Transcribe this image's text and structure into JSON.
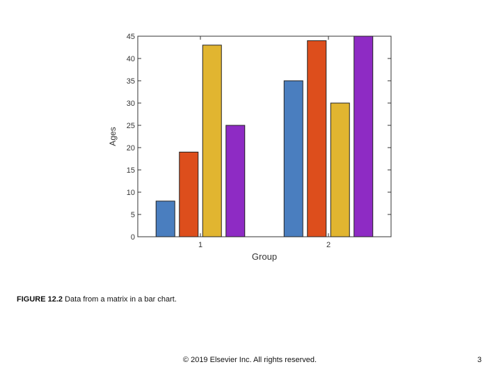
{
  "chart_data": {
    "type": "bar",
    "categories": [
      "1",
      "2"
    ],
    "series": [
      {
        "values": [
          8,
          35
        ],
        "color": "#4A7EBF"
      },
      {
        "values": [
          19,
          44
        ],
        "color": "#DD4E1C"
      },
      {
        "values": [
          43,
          30
        ],
        "color": "#E1B530"
      },
      {
        "values": [
          25,
          45
        ],
        "color": "#8E2BC4"
      }
    ],
    "xlabel": "Group",
    "ylabel": "Ages",
    "ylim": [
      0,
      45
    ],
    "yticks": [
      0,
      5,
      10,
      15,
      20,
      25,
      30,
      35,
      40,
      45
    ],
    "grid": false
  },
  "caption": {
    "label": "FIGURE 12.2",
    "text": "Data from a matrix in a bar chart."
  },
  "footer": {
    "copyright": "© 2019 Elsevier Inc. All rights reserved.",
    "page_number": "3"
  }
}
